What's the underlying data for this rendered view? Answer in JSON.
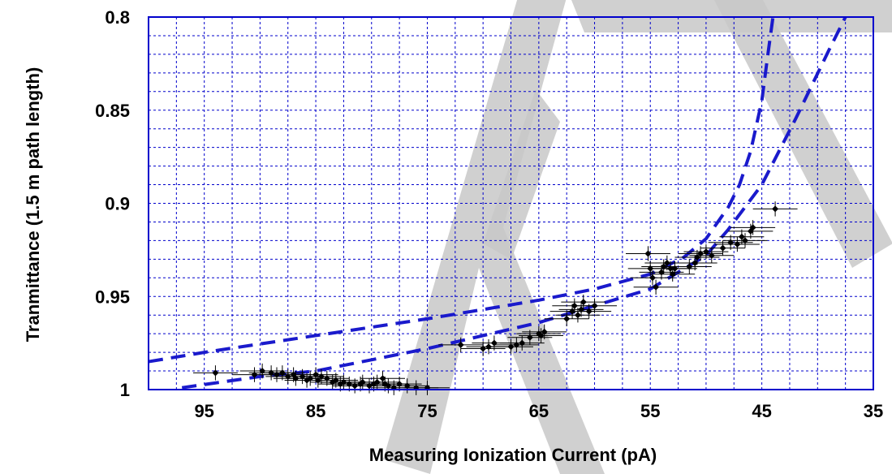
{
  "chart_data": {
    "type": "scatter",
    "title": "",
    "xlabel": "Measuring Ionization Current (pA)",
    "ylabel": "Tranmittance (1.5 m path length)",
    "x_reversed": true,
    "y_reversed": true,
    "xlim": [
      100,
      35
    ],
    "ylim": [
      1.0,
      0.8
    ],
    "x_ticks": [
      95,
      85,
      75,
      65,
      55,
      45,
      35
    ],
    "x_tick_labels": [
      "95",
      "85",
      "75",
      "65",
      "55",
      "45",
      "35"
    ],
    "y_ticks": [
      0.8,
      0.85,
      0.9,
      0.95,
      1.0
    ],
    "y_tick_labels": [
      "0.8",
      "0.85",
      "0.9",
      "0.95",
      "1"
    ],
    "grid": true,
    "colors": {
      "frame": "#0000cc",
      "grid": "#0000cc",
      "curves": "#1a1acc",
      "points": "#000000",
      "watermark": "#c8c8c8"
    },
    "watermark": "AT",
    "series": [
      {
        "kind": "points_with_errorbars",
        "x_err": 2.0,
        "y_err": 0.004,
        "points": [
          [
            94.0,
            0.991
          ],
          [
            90.5,
            0.992
          ],
          [
            89.8,
            0.99
          ],
          [
            89.0,
            0.991
          ],
          [
            88.5,
            0.992
          ],
          [
            88.0,
            0.991
          ],
          [
            87.5,
            0.993
          ],
          [
            87.0,
            0.992
          ],
          [
            86.8,
            0.994
          ],
          [
            86.2,
            0.993
          ],
          [
            85.8,
            0.995
          ],
          [
            85.5,
            0.994
          ],
          [
            85.0,
            0.992
          ],
          [
            84.8,
            0.995
          ],
          [
            84.5,
            0.993
          ],
          [
            84.0,
            0.994
          ],
          [
            83.5,
            0.996
          ],
          [
            83.2,
            0.995
          ],
          [
            82.8,
            0.997
          ],
          [
            82.5,
            0.996
          ],
          [
            82.0,
            0.997
          ],
          [
            81.5,
            0.998
          ],
          [
            81.0,
            0.997
          ],
          [
            80.8,
            0.996
          ],
          [
            80.2,
            0.998
          ],
          [
            79.8,
            0.997
          ],
          [
            79.5,
            0.996
          ],
          [
            79.0,
            0.994
          ],
          [
            78.8,
            0.997
          ],
          [
            78.5,
            0.998
          ],
          [
            78.0,
            0.999
          ],
          [
            77.5,
            0.997
          ],
          [
            76.8,
            0.998
          ],
          [
            76.0,
            0.999
          ],
          [
            75.0,
            0.999
          ],
          [
            72.0,
            0.976
          ],
          [
            70.0,
            0.978
          ],
          [
            69.5,
            0.977
          ],
          [
            69.0,
            0.975
          ],
          [
            67.5,
            0.977
          ],
          [
            67.0,
            0.976
          ],
          [
            66.5,
            0.975
          ],
          [
            65.8,
            0.972
          ],
          [
            65.0,
            0.97
          ],
          [
            64.8,
            0.971
          ],
          [
            64.5,
            0.969
          ],
          [
            62.5,
            0.962
          ],
          [
            62.0,
            0.958
          ],
          [
            61.8,
            0.955
          ],
          [
            61.5,
            0.96
          ],
          [
            61.2,
            0.957
          ],
          [
            61.0,
            0.953
          ],
          [
            60.5,
            0.958
          ],
          [
            60.0,
            0.955
          ],
          [
            55.2,
            0.927
          ],
          [
            55.0,
            0.935
          ],
          [
            54.8,
            0.94
          ],
          [
            54.5,
            0.945
          ],
          [
            54.0,
            0.937
          ],
          [
            53.8,
            0.934
          ],
          [
            53.5,
            0.932
          ],
          [
            53.2,
            0.935
          ],
          [
            53.0,
            0.938
          ],
          [
            52.8,
            0.935
          ],
          [
            51.5,
            0.934
          ],
          [
            51.0,
            0.932
          ],
          [
            50.8,
            0.929
          ],
          [
            50.5,
            0.927
          ],
          [
            50.0,
            0.926
          ],
          [
            49.5,
            0.928
          ],
          [
            48.5,
            0.924
          ],
          [
            47.8,
            0.921
          ],
          [
            47.2,
            0.922
          ],
          [
            46.8,
            0.918
          ],
          [
            46.5,
            0.92
          ],
          [
            46.0,
            0.915
          ],
          [
            45.8,
            0.913
          ],
          [
            43.8,
            0.903
          ]
        ]
      },
      {
        "kind": "dashed_curve",
        "name": "",
        "points": [
          [
            97,
            0.999
          ],
          [
            90,
            0.993
          ],
          [
            85,
            0.99
          ],
          [
            75,
            0.978
          ],
          [
            65,
            0.964
          ],
          [
            60,
            0.955
          ],
          [
            55,
            0.946
          ],
          [
            50,
            0.928
          ],
          [
            48,
            0.914
          ],
          [
            45,
            0.89
          ],
          [
            42,
            0.855
          ],
          [
            39,
            0.818
          ],
          [
            37.5,
            0.792
          ]
        ]
      },
      {
        "kind": "dashed_curve",
        "name": "",
        "points": [
          [
            100,
            0.985
          ],
          [
            95,
            0.98
          ],
          [
            85,
            0.971
          ],
          [
            75,
            0.962
          ],
          [
            65,
            0.952
          ],
          [
            60,
            0.946
          ],
          [
            55,
            0.938
          ],
          [
            52,
            0.929
          ],
          [
            50,
            0.919
          ],
          [
            48,
            0.902
          ],
          [
            47,
            0.89
          ],
          [
            46,
            0.872
          ],
          [
            45,
            0.845
          ],
          [
            44.5,
            0.822
          ],
          [
            44,
            0.79
          ]
        ]
      }
    ]
  }
}
